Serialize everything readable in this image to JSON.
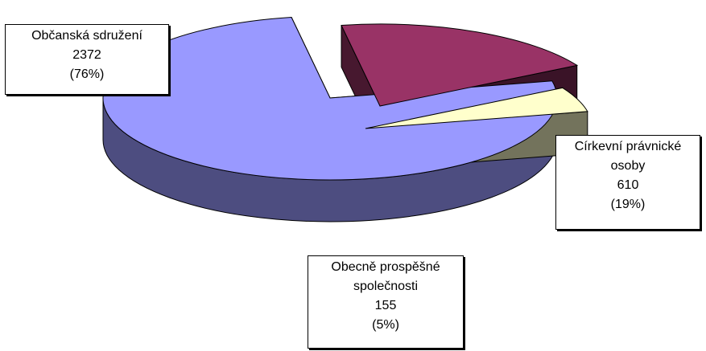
{
  "chart_data": {
    "type": "pie",
    "three_d": true,
    "exploded": true,
    "legend": "none",
    "slices": [
      {
        "name": "Občanská sdružení",
        "value": 2372,
        "percent": "(76%)",
        "color": "#9999ff"
      },
      {
        "name": "Církevní právnické osoby",
        "value": 610,
        "percent": "(19%)",
        "color": "#993366"
      },
      {
        "name": "Obecně prospěšné společnosti",
        "value": 155,
        "percent": "(5%)",
        "color": "#ffffcc"
      }
    ]
  }
}
